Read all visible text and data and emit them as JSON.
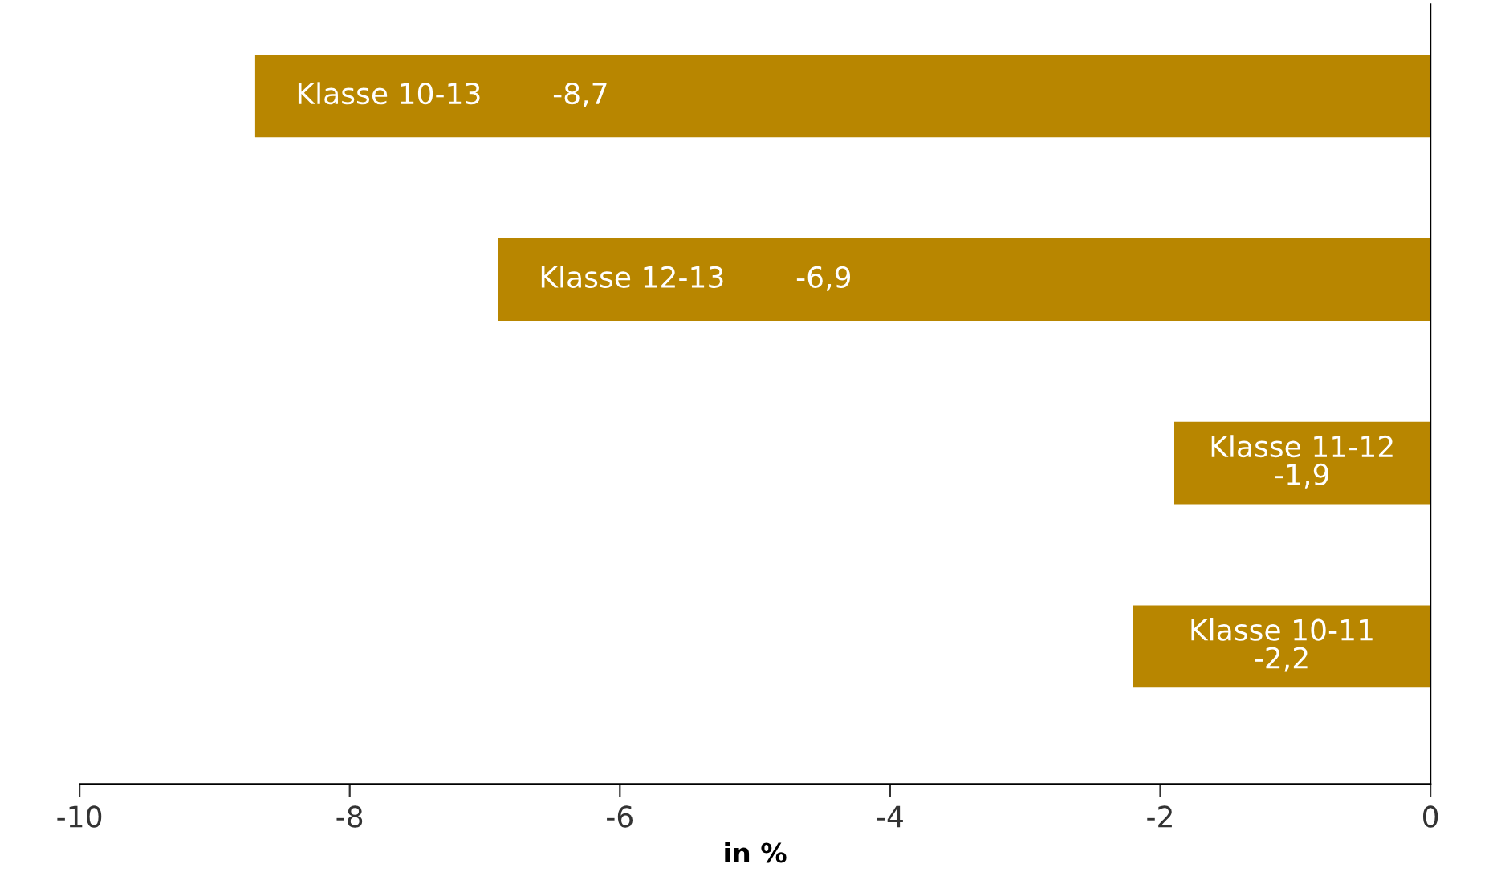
{
  "chart_data": {
    "type": "bar",
    "orientation": "horizontal",
    "xlabel": "in %",
    "categories": [
      "Klasse 10-13",
      "Klasse 12-13",
      "Klasse 11-12",
      "Klasse 10-11"
    ],
    "values": [
      -8.7,
      -6.9,
      -1.9,
      -2.2
    ],
    "value_labels": [
      "-8,7",
      "-6,9",
      "-1,9",
      "-2,2"
    ],
    "color": "#b88600",
    "xlim": [
      -10,
      0
    ],
    "xticks": [
      -10,
      -8,
      -6,
      -4,
      -2,
      0
    ],
    "tick_labels": "x",
    "grid": false
  }
}
